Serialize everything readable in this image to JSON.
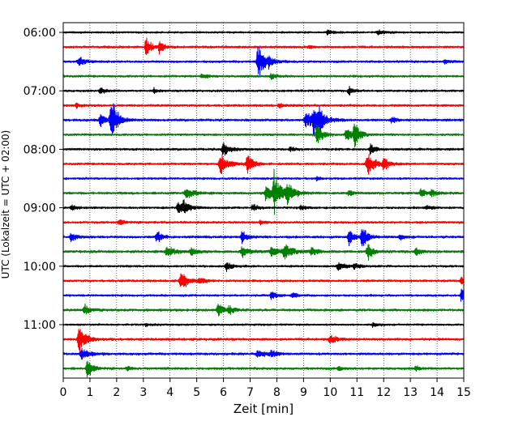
{
  "chart_data": {
    "type": "line",
    "title": "",
    "xlabel": "Zeit  [min]",
    "ylabel": "UTC (Lokalzeit = UTC + 02:00)",
    "xlim": [
      0,
      15
    ],
    "xticks": [
      0,
      1,
      2,
      3,
      4,
      5,
      6,
      7,
      8,
      9,
      10,
      11,
      12,
      13,
      14,
      15
    ],
    "xtick_labels": [
      "0",
      "1",
      "2",
      "3",
      "4",
      "5",
      "6",
      "7",
      "8",
      "9",
      "10",
      "11",
      "12",
      "13",
      "14",
      "15"
    ],
    "grid": "vertical dotted",
    "trace_interval_minutes": 15,
    "ytick_labels": [
      "06:00",
      "07:00",
      "08:00",
      "09:00",
      "10:00",
      "11:00"
    ],
    "ytick_trace_index": [
      0,
      4,
      8,
      12,
      16,
      20
    ],
    "colors": [
      "#000000",
      "#ff0000",
      "#0000ff",
      "#008000"
    ],
    "traces": [
      {
        "start": "06:00",
        "color": "#000000",
        "noise": 1.2,
        "events": [
          [
            9.9,
            3,
            0.3
          ],
          [
            11.8,
            3,
            0.4
          ]
        ]
      },
      {
        "start": "06:15",
        "color": "#ff0000",
        "noise": 1.4,
        "events": [
          [
            3.1,
            16,
            0.25
          ],
          [
            3.6,
            9,
            0.25
          ],
          [
            9.2,
            3,
            0.2
          ]
        ]
      },
      {
        "start": "06:30",
        "color": "#0000ff",
        "noise": 1.4,
        "events": [
          [
            0.6,
            6,
            0.4
          ],
          [
            7.3,
            27,
            0.35
          ],
          [
            7.7,
            5,
            0.3
          ],
          [
            14.3,
            3,
            0.3
          ]
        ]
      },
      {
        "start": "06:45",
        "color": "#008000",
        "noise": 1.4,
        "events": [
          [
            5.2,
            3,
            0.3
          ],
          [
            7.8,
            4,
            0.3
          ]
        ]
      },
      {
        "start": "07:00",
        "color": "#000000",
        "noise": 1.3,
        "events": [
          [
            1.4,
            4,
            0.3
          ],
          [
            3.4,
            4,
            0.2
          ],
          [
            10.7,
            5,
            0.3
          ]
        ]
      },
      {
        "start": "07:15",
        "color": "#ff0000",
        "noise": 1.4,
        "events": [
          [
            0.5,
            3,
            0.3
          ],
          [
            8.1,
            3,
            0.3
          ]
        ]
      },
      {
        "start": "07:30",
        "color": "#0000ff",
        "noise": 1.5,
        "events": [
          [
            1.4,
            8,
            0.4
          ],
          [
            1.8,
            30,
            0.35
          ],
          [
            9.1,
            12,
            0.4
          ],
          [
            9.4,
            24,
            0.4
          ],
          [
            9.6,
            9,
            0.3
          ],
          [
            12.3,
            4,
            0.3
          ]
        ]
      },
      {
        "start": "07:45",
        "color": "#008000",
        "noise": 1.4,
        "events": [
          [
            9.5,
            18,
            0.3
          ],
          [
            10.6,
            10,
            0.3
          ],
          [
            10.9,
            18,
            0.3
          ]
        ]
      },
      {
        "start": "08:00",
        "color": "#000000",
        "noise": 1.4,
        "events": [
          [
            6.0,
            10,
            0.35
          ],
          [
            8.5,
            3,
            0.3
          ],
          [
            11.5,
            7,
            0.3
          ]
        ]
      },
      {
        "start": "08:15",
        "color": "#ff0000",
        "noise": 1.4,
        "events": [
          [
            5.9,
            14,
            0.4
          ],
          [
            6.9,
            14,
            0.3
          ],
          [
            11.4,
            16,
            0.4
          ],
          [
            12.0,
            9,
            0.3
          ]
        ]
      },
      {
        "start": "08:30",
        "color": "#0000ff",
        "noise": 1.3,
        "events": [
          [
            9.5,
            3,
            0.2
          ]
        ]
      },
      {
        "start": "08:45",
        "color": "#008000",
        "noise": 1.5,
        "events": [
          [
            4.6,
            8,
            0.4
          ],
          [
            7.6,
            11,
            0.4
          ],
          [
            7.9,
            30,
            0.35
          ],
          [
            8.4,
            14,
            0.4
          ],
          [
            10.7,
            4,
            0.3
          ],
          [
            13.4,
            7,
            0.3
          ],
          [
            13.8,
            5,
            0.3
          ]
        ]
      },
      {
        "start": "09:00",
        "color": "#000000",
        "noise": 1.3,
        "events": [
          [
            0.3,
            4,
            0.3
          ],
          [
            4.3,
            7,
            0.35
          ],
          [
            4.5,
            9,
            0.35
          ],
          [
            7.1,
            5,
            0.3
          ],
          [
            8.9,
            3,
            0.3
          ],
          [
            13.6,
            3,
            0.3
          ]
        ]
      },
      {
        "start": "09:15",
        "color": "#ff0000",
        "noise": 1.4,
        "events": [
          [
            2.1,
            4,
            0.3
          ],
          [
            7.4,
            3,
            0.3
          ]
        ]
      },
      {
        "start": "09:30",
        "color": "#0000ff",
        "noise": 1.5,
        "events": [
          [
            0.3,
            6,
            0.3
          ],
          [
            3.5,
            10,
            0.25
          ],
          [
            6.7,
            10,
            0.25
          ],
          [
            10.7,
            12,
            0.3
          ],
          [
            11.2,
            16,
            0.3
          ],
          [
            12.6,
            3,
            0.3
          ]
        ]
      },
      {
        "start": "09:45",
        "color": "#008000",
        "noise": 1.6,
        "events": [
          [
            3.9,
            8,
            0.4
          ],
          [
            4.8,
            5,
            0.3
          ],
          [
            6.7,
            7,
            0.4
          ],
          [
            7.8,
            7,
            0.4
          ],
          [
            8.3,
            9,
            0.5
          ],
          [
            9.3,
            6,
            0.3
          ],
          [
            11.4,
            12,
            0.3
          ],
          [
            13.2,
            5,
            0.3
          ]
        ]
      },
      {
        "start": "10:00",
        "color": "#000000",
        "noise": 1.3,
        "events": [
          [
            6.1,
            8,
            0.3
          ],
          [
            10.3,
            6,
            0.4
          ],
          [
            10.9,
            4,
            0.3
          ]
        ]
      },
      {
        "start": "10:15",
        "color": "#ff0000",
        "noise": 1.4,
        "events": [
          [
            4.4,
            16,
            0.35
          ],
          [
            5.1,
            4,
            0.3
          ],
          [
            14.9,
            7,
            0.2
          ]
        ]
      },
      {
        "start": "10:30",
        "color": "#0000ff",
        "noise": 1.3,
        "events": [
          [
            7.8,
            6,
            0.3
          ],
          [
            8.6,
            4,
            0.3
          ],
          [
            14.9,
            9,
            0.2
          ]
        ]
      },
      {
        "start": "10:45",
        "color": "#008000",
        "noise": 1.5,
        "events": [
          [
            0.8,
            8,
            0.3
          ],
          [
            5.8,
            9,
            0.3
          ],
          [
            6.2,
            6,
            0.3
          ]
        ]
      },
      {
        "start": "11:00",
        "color": "#000000",
        "noise": 1.2,
        "events": [
          [
            3.1,
            2,
            0.3
          ],
          [
            11.6,
            3,
            0.3
          ]
        ]
      },
      {
        "start": "11:15",
        "color": "#ff0000",
        "noise": 1.5,
        "events": [
          [
            0.6,
            22,
            0.35
          ],
          [
            10.0,
            6,
            0.4
          ]
        ]
      },
      {
        "start": "11:30",
        "color": "#0000ff",
        "noise": 1.5,
        "events": [
          [
            0.7,
            8,
            0.45
          ],
          [
            7.3,
            6,
            0.4
          ],
          [
            7.8,
            4,
            0.4
          ]
        ]
      },
      {
        "start": "11:45",
        "color": "#008000",
        "noise": 1.4,
        "events": [
          [
            0.9,
            14,
            0.3
          ],
          [
            2.4,
            3,
            0.3
          ],
          [
            10.3,
            3,
            0.3
          ],
          [
            13.2,
            3,
            0.3
          ]
        ]
      }
    ]
  }
}
